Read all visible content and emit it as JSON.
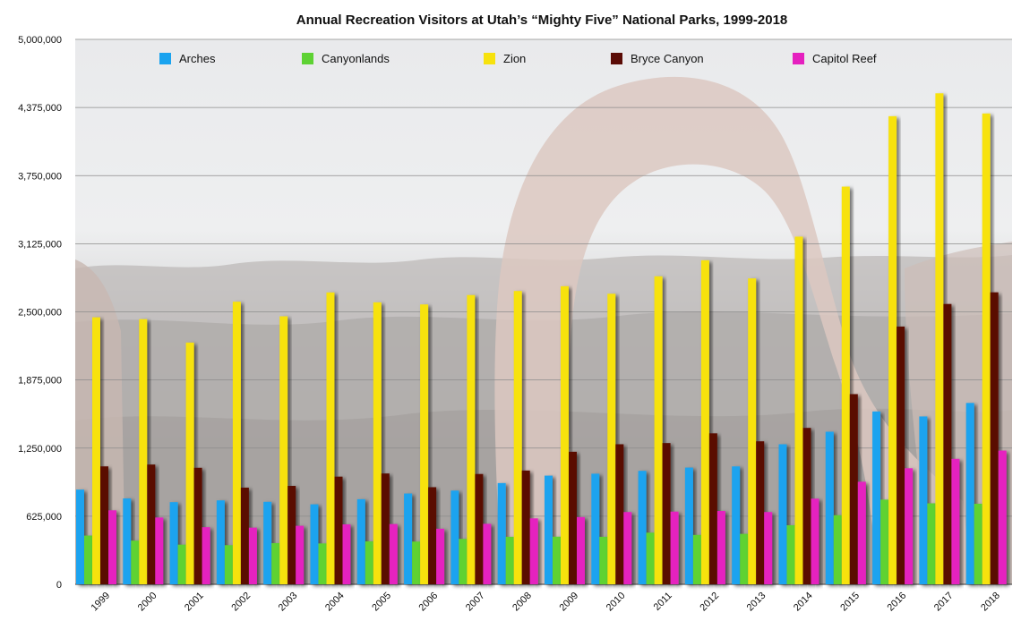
{
  "chart_data": {
    "type": "bar",
    "title": "Annual Recreation Visitors at Utah’s “Mighty Five” National Parks, 1999-2018",
    "xlabel": "",
    "ylabel": "",
    "ylim": [
      0,
      5000000
    ],
    "yticks": [
      "0",
      "625,000",
      "1,250,000",
      "1,875,000",
      "2,500,000",
      "3,125,000",
      "3,750,000",
      "4,375,000",
      "5,000,000"
    ],
    "ytick_values": [
      0,
      625000,
      1250000,
      1875000,
      2500000,
      3125000,
      3750000,
      4375000,
      5000000
    ],
    "grid": true,
    "legend_position": "top",
    "categories": [
      "1999",
      "2000",
      "2001",
      "2002",
      "2003",
      "2004",
      "2005",
      "2006",
      "2007",
      "2008",
      "2009",
      "2010",
      "2011",
      "2012",
      "2013",
      "2014",
      "2015",
      "2016",
      "2017",
      "2018"
    ],
    "series": [
      {
        "name": "Arches",
        "color": "#1aa3ef",
        "values": [
          869000,
          788000,
          754000,
          770000,
          757000,
          734000,
          781000,
          833000,
          860000,
          929000,
          997000,
          1015000,
          1041000,
          1071000,
          1082000,
          1285000,
          1400000,
          1586000,
          1540000,
          1664000
        ]
      },
      {
        "name": "Canyonlands",
        "color": "#5ed233",
        "values": [
          447000,
          401000,
          364000,
          359000,
          378000,
          375000,
          394000,
          392000,
          417000,
          436000,
          437000,
          436000,
          474000,
          453000,
          463000,
          542000,
          634000,
          777000,
          743000,
          739000
        ]
      },
      {
        "name": "Zion",
        "color": "#f7e20d",
        "values": [
          2450000,
          2433000,
          2218000,
          2593000,
          2459000,
          2678000,
          2587000,
          2568000,
          2654000,
          2691000,
          2735000,
          2666000,
          2826000,
          2973000,
          2807000,
          3190000,
          3649000,
          4295000,
          4505000,
          4320000
        ]
      },
      {
        "name": "Bryce Canyon",
        "color": "#5a0b05",
        "values": [
          1082000,
          1099000,
          1069000,
          887000,
          903000,
          988000,
          1017000,
          891000,
          1012000,
          1044000,
          1216000,
          1285000,
          1296000,
          1385000,
          1312000,
          1435000,
          1745000,
          2365000,
          2572000,
          2679000
        ]
      },
      {
        "name": "Capitol Reef",
        "color": "#e520bf",
        "values": [
          679000,
          613000,
          524000,
          520000,
          537000,
          550000,
          553000,
          510000,
          555000,
          605000,
          617000,
          663000,
          667000,
          673000,
          663000,
          786000,
          941000,
          1065000,
          1151000,
          1227000
        ]
      }
    ]
  }
}
